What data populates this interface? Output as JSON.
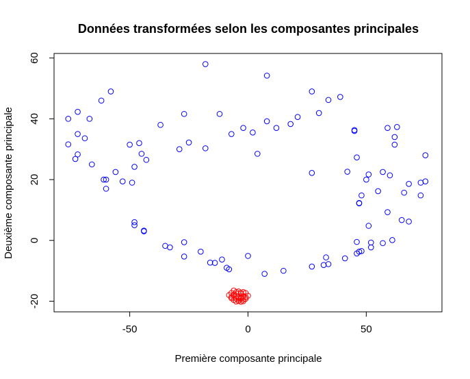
{
  "chart_data": {
    "type": "scatter",
    "title": "Données transformées selon les composantes principales",
    "xlabel": "Première composante principale",
    "ylabel": "Deuxième composante principale",
    "xlim": [
      -82,
      82
    ],
    "ylim": [
      -23.5,
      61.5
    ],
    "xticks": [
      -50,
      0,
      50
    ],
    "yticks": [
      -20,
      0,
      20,
      40,
      60
    ],
    "grid": false,
    "legend": "none",
    "series": [
      {
        "color": "#0000ff",
        "points": [
          [
            -18,
            58
          ],
          [
            8,
            54.2
          ],
          [
            -58,
            49
          ],
          [
            27,
            49
          ],
          [
            39,
            47.2
          ],
          [
            -62,
            46
          ],
          [
            34,
            46.2
          ],
          [
            -72,
            42.3
          ],
          [
            -27,
            41.6
          ],
          [
            -12,
            41.6
          ],
          [
            30,
            41.9
          ],
          [
            -76,
            40
          ],
          [
            -67,
            40
          ],
          [
            21,
            40.6
          ],
          [
            8,
            39.2
          ],
          [
            18,
            38.3
          ],
          [
            -37,
            38
          ],
          [
            -2,
            37
          ],
          [
            12,
            37
          ],
          [
            59,
            37
          ],
          [
            63,
            37.3
          ],
          [
            45,
            36.3
          ],
          [
            45,
            36
          ],
          [
            2,
            35.5
          ],
          [
            -72,
            35
          ],
          [
            -7,
            35
          ],
          [
            -69,
            33.6
          ],
          [
            62,
            34
          ],
          [
            -25,
            32.2
          ],
          [
            -46,
            32
          ],
          [
            -76,
            31.6
          ],
          [
            -50,
            31.5
          ],
          [
            62,
            31.5
          ],
          [
            -18,
            30.3
          ],
          [
            -29,
            30
          ],
          [
            -45,
            28.5
          ],
          [
            4,
            28.5
          ],
          [
            -72,
            28.3
          ],
          [
            75,
            28
          ],
          [
            -73,
            26.8
          ],
          [
            -43,
            26.5
          ],
          [
            46,
            27.3
          ],
          [
            -66,
            25
          ],
          [
            -48,
            24.2
          ],
          [
            -56,
            22.5
          ],
          [
            42,
            22.6
          ],
          [
            57,
            22.5
          ],
          [
            27,
            22.2
          ],
          [
            51,
            21.7
          ],
          [
            60,
            21.4
          ],
          [
            -61,
            20
          ],
          [
            -60,
            20
          ],
          [
            50,
            20
          ],
          [
            -53,
            19.4
          ],
          [
            -49,
            19
          ],
          [
            68,
            18.6
          ],
          [
            73,
            19
          ],
          [
            75,
            19.4
          ],
          [
            -60,
            17
          ],
          [
            55,
            16.2
          ],
          [
            66,
            15.7
          ],
          [
            48,
            14.8
          ],
          [
            73,
            14.8
          ],
          [
            47,
            12.2
          ],
          [
            47,
            12.3
          ],
          [
            59,
            9.3
          ],
          [
            -48,
            6
          ],
          [
            -48,
            5
          ],
          [
            65,
            6.7
          ],
          [
            68,
            6.2
          ],
          [
            51,
            4.8
          ],
          [
            -44,
            3.2
          ],
          [
            -44,
            3
          ],
          [
            -27,
            -0.6
          ],
          [
            46,
            -0.5
          ],
          [
            52,
            -0.7
          ],
          [
            57,
            -0.9
          ],
          [
            61,
            0.1
          ],
          [
            -35,
            -1.8
          ],
          [
            -33,
            -2.3
          ],
          [
            52,
            -2.3
          ],
          [
            -20,
            -3.7
          ],
          [
            47,
            -3.7
          ],
          [
            48,
            -3.5
          ],
          [
            46,
            -4.3
          ],
          [
            -27,
            -5.3
          ],
          [
            0,
            -5.1
          ],
          [
            33,
            -5.6
          ],
          [
            41,
            -5.9
          ],
          [
            -11,
            -6.3
          ],
          [
            -16,
            -7.3
          ],
          [
            -14,
            -7.4
          ],
          [
            32,
            -8.1
          ],
          [
            34,
            -7.8
          ],
          [
            27,
            -8.6
          ],
          [
            -9,
            -9
          ],
          [
            -8,
            -9.5
          ],
          [
            15,
            -10
          ],
          [
            7,
            -11
          ]
        ]
      },
      {
        "color": "#ff0000",
        "points": [
          [
            -6,
            -16.5
          ],
          [
            -4,
            -16.8
          ],
          [
            -2,
            -17
          ],
          [
            -7,
            -17.3
          ],
          [
            -5,
            -17.5
          ],
          [
            -3,
            -17.6
          ],
          [
            -1,
            -17.3
          ],
          [
            0,
            -18.2
          ],
          [
            -8,
            -18
          ],
          [
            -6,
            -18.2
          ],
          [
            -4,
            -18.4
          ],
          [
            -2,
            -18.3
          ],
          [
            -1,
            -18.7
          ],
          [
            -7,
            -19
          ],
          [
            -5,
            -19.1
          ],
          [
            -3,
            -19.1
          ],
          [
            -6,
            -19.6
          ],
          [
            -4,
            -19.9
          ],
          [
            -2,
            -19.5
          ],
          [
            -5,
            -20.1
          ],
          [
            -3,
            -20.2
          ],
          [
            -4,
            -18.9
          ],
          [
            -5,
            -17
          ],
          [
            -3,
            -18.9
          ],
          [
            -2,
            -20
          ],
          [
            -6,
            -17.8
          ],
          [
            -4,
            -19.5
          ],
          [
            -1,
            -19.2
          ],
          [
            -7,
            -18.6
          ],
          [
            -3,
            -17.2
          ]
        ]
      }
    ]
  }
}
